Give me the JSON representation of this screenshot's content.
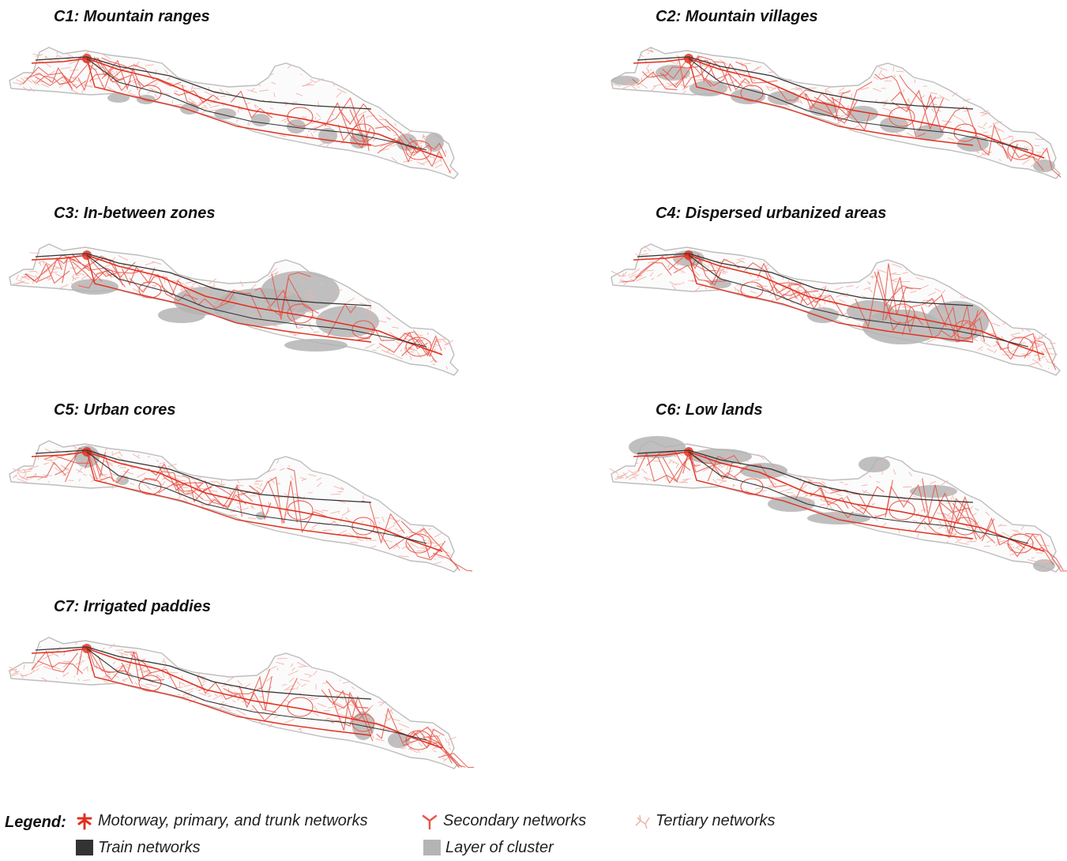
{
  "panels": [
    {
      "title": "C1: Mountain ranges"
    },
    {
      "title": "C2: Mountain villages"
    },
    {
      "title": "C3: In-between zones"
    },
    {
      "title": "C4: Dispersed urbanized areas"
    },
    {
      "title": "C5: Urban cores"
    },
    {
      "title": "C6: Low lands"
    },
    {
      "title": "C7: Irrigated paddies"
    }
  ],
  "legend": {
    "label": "Legend:",
    "motorway": "Motorway, primary, and trunk networks",
    "secondary": "Secondary networks",
    "tertiary": "Tertiary networks",
    "train": "Train networks",
    "cluster": "Layer of cluster"
  },
  "colors": {
    "motorway": "#e0301e",
    "secondary": "#e8564a",
    "tertiary": "#f2b3ab",
    "train": "#333333",
    "cluster": "#b4b4b4",
    "coast": "#bdbdbd"
  },
  "icons": {
    "motorway": "motorway-network-icon",
    "secondary": "secondary-network-icon",
    "tertiary": "tertiary-network-icon",
    "train": "train-network-swatch",
    "cluster": "cluster-layer-swatch"
  }
}
